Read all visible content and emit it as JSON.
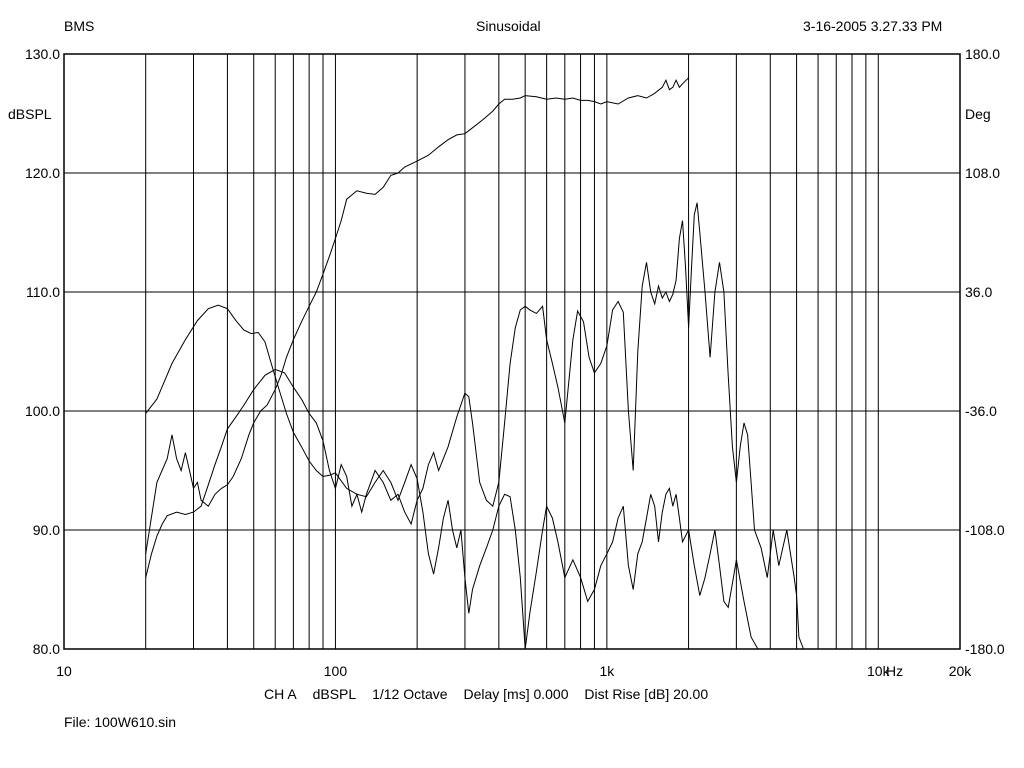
{
  "header": {
    "left": "BMS",
    "center": "Sinusoidal",
    "right": "3-16-2005 3.27.33 PM"
  },
  "status_line": {
    "channel": "CH A",
    "unit": "dBSPL",
    "smoothing": "1/12 Octave",
    "delay": "Delay [ms] 0.000",
    "dist_rise": "Dist Rise [dB] 20.00"
  },
  "file_label": "File: 100W610.sin",
  "chart_data": {
    "type": "line",
    "title": "Sinusoidal",
    "x_scale": "log",
    "xlim": [
      10,
      20000
    ],
    "x_tick_labels": [
      {
        "value": 10,
        "label": "10"
      },
      {
        "value": 100,
        "label": "100"
      },
      {
        "value": 1000,
        "label": "1k"
      },
      {
        "value": 10000,
        "label": "10k"
      },
      {
        "value": 20000,
        "label": "20k"
      }
    ],
    "x_unit_label": "Hz",
    "y_left": {
      "label": "dBSPL",
      "ylim": [
        80,
        130
      ],
      "ticks": [
        {
          "value": 130,
          "label": "130.0"
        },
        {
          "value": 120,
          "label": "120.0"
        },
        {
          "value": 110,
          "label": "110.0"
        },
        {
          "value": 100,
          "label": "100.0"
        },
        {
          "value": 90,
          "label": "90.0"
        },
        {
          "value": 80,
          "label": "80.0"
        }
      ]
    },
    "y_right": {
      "label": "Deg",
      "ylim": [
        -180,
        180
      ],
      "ticks": [
        {
          "value": 180,
          "label": "180.0"
        },
        {
          "value": 108,
          "label": "108.0"
        },
        {
          "value": 36,
          "label": "36.0"
        },
        {
          "value": -36,
          "label": "-36.0"
        },
        {
          "value": -108,
          "label": "-108.0"
        },
        {
          "value": -180,
          "label": "-180.0"
        }
      ]
    },
    "grid": true,
    "series": [
      {
        "axis": "left",
        "values": [
          [
            20,
            99.8
          ],
          [
            22,
            101
          ],
          [
            25,
            104
          ],
          [
            28,
            106
          ],
          [
            31,
            107.6
          ],
          [
            34,
            108.6
          ],
          [
            37,
            108.9
          ],
          [
            40,
            108.6
          ],
          [
            43,
            107.6
          ],
          [
            46,
            106.8
          ],
          [
            49,
            106.5
          ],
          [
            52,
            106.6
          ],
          [
            55,
            105.8
          ],
          [
            58,
            104
          ],
          [
            62,
            101.8
          ],
          [
            66,
            99.8
          ],
          [
            70,
            98.2
          ],
          [
            75,
            97
          ],
          [
            80,
            95.8
          ],
          [
            85,
            95
          ],
          [
            90,
            94.5
          ],
          [
            95,
            94.6
          ],
          [
            100,
            94.8
          ],
          [
            110,
            93.5
          ],
          [
            120,
            93
          ],
          [
            130,
            92.8
          ],
          [
            140,
            94
          ],
          [
            150,
            95
          ],
          [
            160,
            94
          ],
          [
            170,
            92.5
          ],
          [
            180,
            94
          ],
          [
            190,
            95.5
          ],
          [
            200,
            94.3
          ],
          [
            210,
            91.5
          ],
          [
            220,
            88
          ],
          [
            230,
            86.3
          ],
          [
            240,
            88.5
          ],
          [
            250,
            91
          ],
          [
            260,
            92.5
          ],
          [
            270,
            90
          ],
          [
            280,
            88.5
          ],
          [
            290,
            90
          ],
          [
            300,
            86
          ],
          [
            310,
            83
          ],
          [
            320,
            85
          ],
          [
            340,
            87
          ],
          [
            360,
            88.5
          ],
          [
            380,
            90
          ],
          [
            400,
            92
          ],
          [
            420,
            93
          ],
          [
            440,
            92.8
          ],
          [
            460,
            90
          ],
          [
            480,
            86
          ],
          [
            500,
            80
          ],
          [
            520,
            83
          ],
          [
            550,
            86.5
          ],
          [
            580,
            90
          ],
          [
            600,
            92
          ],
          [
            630,
            91
          ],
          [
            660,
            89
          ],
          [
            700,
            86
          ],
          [
            750,
            87.5
          ],
          [
            800,
            86
          ],
          [
            850,
            84
          ],
          [
            900,
            85
          ],
          [
            950,
            87
          ],
          [
            1000,
            88
          ],
          [
            1050,
            89
          ],
          [
            1100,
            91
          ],
          [
            1150,
            92
          ],
          [
            1200,
            87
          ],
          [
            1250,
            85
          ],
          [
            1300,
            88
          ],
          [
            1350,
            89
          ],
          [
            1400,
            91
          ],
          [
            1450,
            93
          ],
          [
            1500,
            92
          ],
          [
            1550,
            89
          ],
          [
            1600,
            91.5
          ],
          [
            1650,
            93
          ],
          [
            1700,
            93.5
          ],
          [
            1750,
            92
          ],
          [
            1800,
            93
          ],
          [
            1850,
            91
          ],
          [
            1900,
            89
          ],
          [
            2000,
            90
          ],
          [
            2100,
            87
          ],
          [
            2200,
            84.5
          ],
          [
            2300,
            86
          ],
          [
            2400,
            88
          ],
          [
            2500,
            90
          ],
          [
            2600,
            87
          ],
          [
            2700,
            84
          ],
          [
            2800,
            83.5
          ],
          [
            2900,
            85.5
          ],
          [
            3000,
            87.5
          ],
          [
            3200,
            84
          ],
          [
            3400,
            81
          ],
          [
            3600,
            80
          ],
          [
            3800,
            79
          ],
          [
            4000,
            78.5
          ]
        ]
      },
      {
        "axis": "left",
        "values": [
          [
            20,
            86
          ],
          [
            21,
            88
          ],
          [
            22,
            89.5
          ],
          [
            23,
            90.5
          ],
          [
            24,
            91.2
          ],
          [
            26,
            91.5
          ],
          [
            28,
            91.3
          ],
          [
            30,
            91.5
          ],
          [
            32,
            92
          ],
          [
            34,
            93.8
          ],
          [
            36,
            95.5
          ],
          [
            38,
            97
          ],
          [
            40,
            98.5
          ],
          [
            43,
            99.5
          ],
          [
            46,
            100.5
          ],
          [
            50,
            101.8
          ],
          [
            55,
            103
          ],
          [
            60,
            103.5
          ],
          [
            65,
            103.2
          ],
          [
            70,
            102
          ],
          [
            75,
            101
          ],
          [
            80,
            99.8
          ],
          [
            85,
            99
          ],
          [
            90,
            97.5
          ],
          [
            95,
            95
          ],
          [
            100,
            93.5
          ],
          [
            105,
            95.5
          ],
          [
            110,
            94.5
          ],
          [
            115,
            92
          ],
          [
            120,
            93
          ],
          [
            125,
            91.5
          ],
          [
            130,
            93
          ],
          [
            140,
            95
          ],
          [
            150,
            94
          ],
          [
            160,
            92.5
          ],
          [
            170,
            93
          ],
          [
            180,
            91.5
          ],
          [
            190,
            90.5
          ],
          [
            200,
            92.5
          ],
          [
            210,
            93.5
          ],
          [
            220,
            95.5
          ],
          [
            230,
            96.5
          ],
          [
            240,
            95
          ],
          [
            250,
            96
          ],
          [
            260,
            97
          ],
          [
            280,
            99.5
          ],
          [
            300,
            101.5
          ],
          [
            310,
            101.2
          ],
          [
            320,
            99
          ],
          [
            340,
            94
          ],
          [
            360,
            92.5
          ],
          [
            380,
            92
          ],
          [
            400,
            94
          ],
          [
            420,
            99
          ],
          [
            440,
            104
          ],
          [
            460,
            107
          ],
          [
            480,
            108.5
          ],
          [
            500,
            108.8
          ],
          [
            520,
            108.5
          ],
          [
            550,
            108.2
          ],
          [
            580,
            108.8
          ],
          [
            600,
            106
          ],
          [
            630,
            104
          ],
          [
            660,
            102
          ],
          [
            700,
            99
          ],
          [
            750,
            106
          ],
          [
            780,
            108.4
          ],
          [
            820,
            107.5
          ],
          [
            860,
            104.5
          ],
          [
            900,
            103.2
          ],
          [
            950,
            104
          ],
          [
            1000,
            105.5
          ],
          [
            1050,
            108.5
          ],
          [
            1100,
            109.2
          ],
          [
            1150,
            108.3
          ],
          [
            1200,
            100
          ],
          [
            1250,
            95
          ],
          [
            1300,
            105
          ],
          [
            1350,
            110.5
          ],
          [
            1400,
            112.5
          ],
          [
            1450,
            110
          ],
          [
            1500,
            109
          ],
          [
            1550,
            110.5
          ],
          [
            1600,
            109.5
          ],
          [
            1650,
            110
          ],
          [
            1700,
            109.2
          ],
          [
            1750,
            109.8
          ],
          [
            1800,
            111
          ],
          [
            1850,
            114.5
          ],
          [
            1900,
            116
          ],
          [
            1950,
            112
          ],
          [
            2000,
            107
          ],
          [
            2050,
            112
          ],
          [
            2100,
            116.5
          ],
          [
            2150,
            117.5
          ],
          [
            2200,
            115
          ],
          [
            2300,
            110
          ],
          [
            2400,
            104.5
          ],
          [
            2500,
            110
          ],
          [
            2600,
            112.5
          ],
          [
            2700,
            110
          ],
          [
            2800,
            103
          ],
          [
            2900,
            97
          ],
          [
            3000,
            94
          ],
          [
            3100,
            97
          ],
          [
            3200,
            99
          ],
          [
            3300,
            98
          ],
          [
            3400,
            94
          ],
          [
            3500,
            90
          ],
          [
            3700,
            88.5
          ],
          [
            3900,
            86
          ],
          [
            4100,
            90
          ],
          [
            4300,
            87
          ],
          [
            4600,
            90
          ],
          [
            4900,
            86
          ],
          [
            5000,
            84.5
          ],
          [
            5100,
            81
          ],
          [
            5300,
            78.5
          ]
        ]
      },
      {
        "axis": "left",
        "values": [
          [
            20,
            88
          ],
          [
            22,
            94
          ],
          [
            24,
            96
          ],
          [
            25,
            98
          ],
          [
            26,
            96
          ],
          [
            27,
            95
          ],
          [
            28,
            96.5
          ],
          [
            29,
            95
          ],
          [
            30,
            93.5
          ],
          [
            31,
            94
          ],
          [
            32,
            92.5
          ],
          [
            34,
            92
          ],
          [
            36,
            93
          ],
          [
            38,
            93.5
          ],
          [
            40,
            93.8
          ],
          [
            42,
            94.5
          ],
          [
            45,
            96
          ],
          [
            48,
            98
          ],
          [
            50,
            99
          ],
          [
            53,
            100
          ],
          [
            56,
            100.5
          ],
          [
            60,
            101.8
          ],
          [
            63,
            103
          ],
          [
            66,
            104.5
          ],
          [
            70,
            106
          ],
          [
            75,
            107.5
          ],
          [
            80,
            108.8
          ],
          [
            85,
            110
          ],
          [
            90,
            111.5
          ],
          [
            95,
            113
          ],
          [
            100,
            114.5
          ],
          [
            105,
            116
          ],
          [
            110,
            117.8
          ],
          [
            120,
            118.5
          ],
          [
            130,
            118.3
          ],
          [
            140,
            118.2
          ],
          [
            150,
            118.8
          ],
          [
            160,
            119.8
          ],
          [
            170,
            120
          ],
          [
            180,
            120.5
          ],
          [
            200,
            121
          ],
          [
            220,
            121.5
          ],
          [
            240,
            122.2
          ],
          [
            260,
            122.8
          ],
          [
            280,
            123.2
          ],
          [
            300,
            123.3
          ],
          [
            320,
            123.8
          ],
          [
            350,
            124.5
          ],
          [
            380,
            125.2
          ],
          [
            400,
            125.8
          ],
          [
            420,
            126.2
          ],
          [
            450,
            126.2
          ],
          [
            480,
            126.3
          ],
          [
            500,
            126.5
          ],
          [
            550,
            126.4
          ],
          [
            600,
            126.2
          ],
          [
            650,
            126.3
          ],
          [
            700,
            126.2
          ],
          [
            750,
            126.3
          ],
          [
            800,
            126.1
          ],
          [
            850,
            126.1
          ],
          [
            900,
            126
          ],
          [
            950,
            125.8
          ],
          [
            1000,
            126
          ],
          [
            1100,
            125.8
          ],
          [
            1200,
            126.3
          ],
          [
            1300,
            126.5
          ],
          [
            1400,
            126.3
          ],
          [
            1500,
            126.7
          ],
          [
            1600,
            127.2
          ],
          [
            1650,
            127.8
          ],
          [
            1700,
            127
          ],
          [
            1750,
            127.2
          ],
          [
            1800,
            127.8
          ],
          [
            1850,
            127.2
          ],
          [
            1900,
            127.5
          ],
          [
            2000,
            128
          ]
        ]
      }
    ]
  }
}
